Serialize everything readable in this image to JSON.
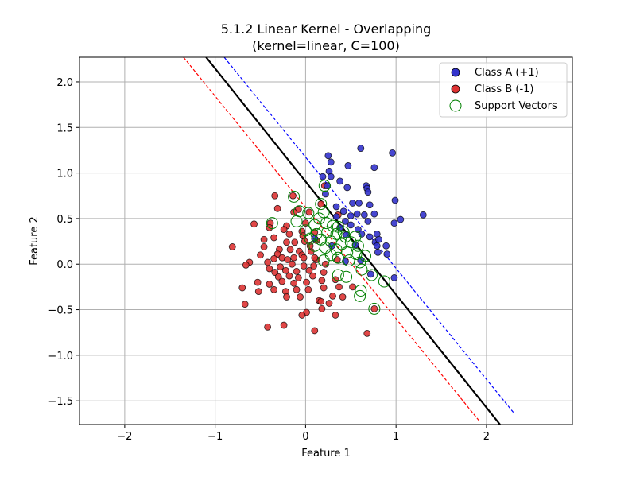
{
  "chart_data": {
    "type": "scatter",
    "title": "5.1.2 Linear Kernel - Overlapping",
    "subtitle": "(kernel=linear, C=100)",
    "xlabel": "Feature 1",
    "ylabel": "Feature 2",
    "xlim": [
      -2.5,
      2.95
    ],
    "ylim": [
      -1.76,
      2.27
    ],
    "x_ticks": [
      -2,
      -1,
      0,
      1,
      2
    ],
    "x_tick_labels": [
      "−2",
      "−1",
      "0",
      "1",
      "2"
    ],
    "y_ticks": [
      -1.5,
      -1.0,
      -0.5,
      0.0,
      0.5,
      1.0,
      1.5,
      2.0
    ],
    "y_tick_labels": [
      "−1.5",
      "−1.0",
      "−0.5",
      "0.0",
      "0.5",
      "1.0",
      "1.5",
      "2.0"
    ],
    "grid": true,
    "legend_position": "top-right",
    "colors": {
      "class_a_fill": "#3333cc",
      "class_b_fill": "#dd3333",
      "marker_edge": "#000000",
      "support_vector_edge": "#008000",
      "decision_boundary": "#000000",
      "margin_positive": "#0000ff",
      "margin_negative": "#ff0000"
    },
    "lines": [
      {
        "role": "decision_boundary",
        "style": "solid",
        "points": [
          [
            -1.1,
            2.27
          ],
          [
            2.15,
            -1.76
          ]
        ]
      },
      {
        "role": "margin_positive",
        "style": "dashed",
        "points": [
          [
            -0.9,
            2.27
          ],
          [
            2.3,
            -1.63
          ]
        ]
      },
      {
        "role": "margin_negative",
        "style": "dashed",
        "points": [
          [
            -1.35,
            2.27
          ],
          [
            1.92,
            -1.72
          ]
        ]
      }
    ],
    "series": [
      {
        "name": "Class A (+1)",
        "marker": "circle",
        "points": [
          [
            0.25,
            1.19
          ],
          [
            0.28,
            1.12
          ],
          [
            0.61,
            1.27
          ],
          [
            0.96,
            1.22
          ],
          [
            0.47,
            1.08
          ],
          [
            0.76,
            1.06
          ],
          [
            0.26,
            1.02
          ],
          [
            0.28,
            0.96
          ],
          [
            0.19,
            0.96
          ],
          [
            0.38,
            0.91
          ],
          [
            0.24,
            0.86
          ],
          [
            0.67,
            0.86
          ],
          [
            0.68,
            0.83
          ],
          [
            0.46,
            0.84
          ],
          [
            0.22,
            0.77
          ],
          [
            0.69,
            0.79
          ],
          [
            0.99,
            0.7
          ],
          [
            0.52,
            0.67
          ],
          [
            0.59,
            0.67
          ],
          [
            0.71,
            0.65
          ],
          [
            0.34,
            0.63
          ],
          [
            0.42,
            0.58
          ],
          [
            0.76,
            0.55
          ],
          [
            0.65,
            0.54
          ],
          [
            0.5,
            0.53
          ],
          [
            0.57,
            0.55
          ],
          [
            1.3,
            0.54
          ],
          [
            1.05,
            0.49
          ],
          [
            0.98,
            0.45
          ],
          [
            0.69,
            0.47
          ],
          [
            0.44,
            0.47
          ],
          [
            0.5,
            0.43
          ],
          [
            0.38,
            0.4
          ],
          [
            0.58,
            0.38
          ],
          [
            0.62,
            0.33
          ],
          [
            0.71,
            0.3
          ],
          [
            0.79,
            0.33
          ],
          [
            0.77,
            0.24
          ],
          [
            0.81,
            0.27
          ],
          [
            0.79,
            0.2
          ],
          [
            0.89,
            0.2
          ],
          [
            0.8,
            0.13
          ],
          [
            0.9,
            0.11
          ],
          [
            0.55,
            0.21
          ],
          [
            0.45,
            0.32
          ],
          [
            0.29,
            0.2
          ],
          [
            0.34,
            0.52
          ],
          [
            0.1,
            0.28
          ],
          [
            0.98,
            -0.15
          ],
          [
            0.72,
            -0.11
          ],
          [
            0.61,
            0.04
          ],
          [
            0.44,
            0.03
          ]
        ]
      },
      {
        "name": "Class B (-1)",
        "marker": "circle",
        "points": [
          [
            -0.34,
            0.75
          ],
          [
            -0.14,
            0.75
          ],
          [
            0.21,
            0.86
          ],
          [
            0.17,
            0.66
          ],
          [
            -0.31,
            0.61
          ],
          [
            -0.08,
            0.6
          ],
          [
            -0.13,
            0.57
          ],
          [
            0.04,
            0.57
          ],
          [
            0.36,
            0.54
          ],
          [
            -0.57,
            0.44
          ],
          [
            -0.39,
            0.45
          ],
          [
            -0.21,
            0.42
          ],
          [
            -0.24,
            0.38
          ],
          [
            -0.18,
            0.33
          ],
          [
            -0.04,
            0.36
          ],
          [
            -0.03,
            0.31
          ],
          [
            0.1,
            0.35
          ],
          [
            -0.46,
            0.27
          ],
          [
            -0.35,
            0.29
          ],
          [
            -0.21,
            0.24
          ],
          [
            -0.12,
            0.24
          ],
          [
            -0.01,
            0.25
          ],
          [
            0.12,
            0.26
          ],
          [
            -0.81,
            0.19
          ],
          [
            -0.46,
            0.19
          ],
          [
            -0.29,
            0.16
          ],
          [
            -0.17,
            0.16
          ],
          [
            -0.07,
            0.14
          ],
          [
            0.06,
            0.14
          ],
          [
            -0.31,
            0.11
          ],
          [
            -0.04,
            0.1
          ],
          [
            0.12,
            0.05
          ],
          [
            -0.35,
            0.06
          ],
          [
            -0.26,
            0.07
          ],
          [
            -0.13,
            0.07
          ],
          [
            -0.02,
            0.07
          ],
          [
            0.1,
            0.07
          ],
          [
            -0.62,
            0.02
          ],
          [
            -0.66,
            -0.01
          ],
          [
            -0.42,
            0.02
          ],
          [
            -0.28,
            -0.03
          ],
          [
            -0.15,
            0.0
          ],
          [
            -0.02,
            -0.02
          ],
          [
            0.09,
            -0.02
          ],
          [
            -0.4,
            -0.05
          ],
          [
            -0.34,
            -0.09
          ],
          [
            -0.22,
            -0.07
          ],
          [
            -0.1,
            -0.08
          ],
          [
            0.04,
            -0.07
          ],
          [
            0.2,
            -0.09
          ],
          [
            -0.3,
            -0.14
          ],
          [
            -0.18,
            -0.13
          ],
          [
            -0.08,
            -0.15
          ],
          [
            0.08,
            -0.13
          ],
          [
            -0.53,
            -0.2
          ],
          [
            -0.4,
            -0.22
          ],
          [
            -0.26,
            -0.19
          ],
          [
            -0.13,
            -0.21
          ],
          [
            0.01,
            -0.2
          ],
          [
            0.18,
            -0.18
          ],
          [
            0.33,
            -0.17
          ],
          [
            -0.7,
            -0.26
          ],
          [
            -0.52,
            -0.3
          ],
          [
            -0.35,
            -0.28
          ],
          [
            -0.22,
            -0.3
          ],
          [
            -0.1,
            -0.28
          ],
          [
            0.03,
            -0.28
          ],
          [
            0.2,
            -0.26
          ],
          [
            0.37,
            -0.25
          ],
          [
            0.52,
            -0.25
          ],
          [
            -0.67,
            -0.44
          ],
          [
            -0.21,
            -0.36
          ],
          [
            -0.06,
            -0.36
          ],
          [
            0.15,
            -0.4
          ],
          [
            0.3,
            -0.35
          ],
          [
            0.41,
            -0.36
          ],
          [
            0.17,
            -0.41
          ],
          [
            0.26,
            -0.43
          ],
          [
            0.18,
            -0.49
          ],
          [
            0.01,
            -0.53
          ],
          [
            -0.04,
            -0.56
          ],
          [
            0.33,
            -0.56
          ],
          [
            -0.42,
            -0.69
          ],
          [
            -0.24,
            -0.67
          ],
          [
            0.1,
            -0.73
          ],
          [
            0.68,
            -0.76
          ],
          [
            0.76,
            -0.49
          ],
          [
            0.35,
            0.05
          ],
          [
            0.22,
            0.0
          ],
          [
            -0.4,
            0.4
          ],
          [
            -0.2,
            0.05
          ],
          [
            0.0,
            0.45
          ],
          [
            -0.5,
            0.1
          ],
          [
            0.05,
            0.2
          ]
        ]
      },
      {
        "name": "Support Vectors",
        "marker": "hollow-circle",
        "points": [
          [
            0.17,
            0.66
          ],
          [
            0.21,
            0.86
          ],
          [
            -0.13,
            0.74
          ],
          [
            -0.37,
            0.45
          ],
          [
            -0.07,
            0.58
          ],
          [
            0.03,
            0.56
          ],
          [
            0.2,
            0.57
          ],
          [
            -0.1,
            0.47
          ],
          [
            0.1,
            0.43
          ],
          [
            0.23,
            0.45
          ],
          [
            0.36,
            0.41
          ],
          [
            0.0,
            0.37
          ],
          [
            0.12,
            0.33
          ],
          [
            0.24,
            0.35
          ],
          [
            0.34,
            0.33
          ],
          [
            0.44,
            0.3
          ],
          [
            0.17,
            0.27
          ],
          [
            0.28,
            0.25
          ],
          [
            0.4,
            0.22
          ],
          [
            0.5,
            0.24
          ],
          [
            0.58,
            0.2
          ],
          [
            0.22,
            0.18
          ],
          [
            0.34,
            0.16
          ],
          [
            0.46,
            0.13
          ],
          [
            0.56,
            0.11
          ],
          [
            0.66,
            0.09
          ],
          [
            0.36,
            0.07
          ],
          [
            0.48,
            0.04
          ],
          [
            0.6,
            0.02
          ],
          [
            0.1,
            0.2
          ],
          [
            0.3,
            0.42
          ],
          [
            0.42,
            0.35
          ],
          [
            0.15,
            0.5
          ],
          [
            0.05,
            0.28
          ],
          [
            0.55,
            0.3
          ],
          [
            0.62,
            -0.06
          ],
          [
            0.36,
            -0.12
          ],
          [
            0.45,
            -0.14
          ],
          [
            0.73,
            -0.12
          ],
          [
            0.61,
            -0.29
          ],
          [
            0.6,
            -0.35
          ],
          [
            0.87,
            -0.19
          ],
          [
            0.76,
            -0.49
          ],
          [
            0.28,
            0.1
          ],
          [
            0.2,
            0.04
          ]
        ]
      }
    ]
  }
}
